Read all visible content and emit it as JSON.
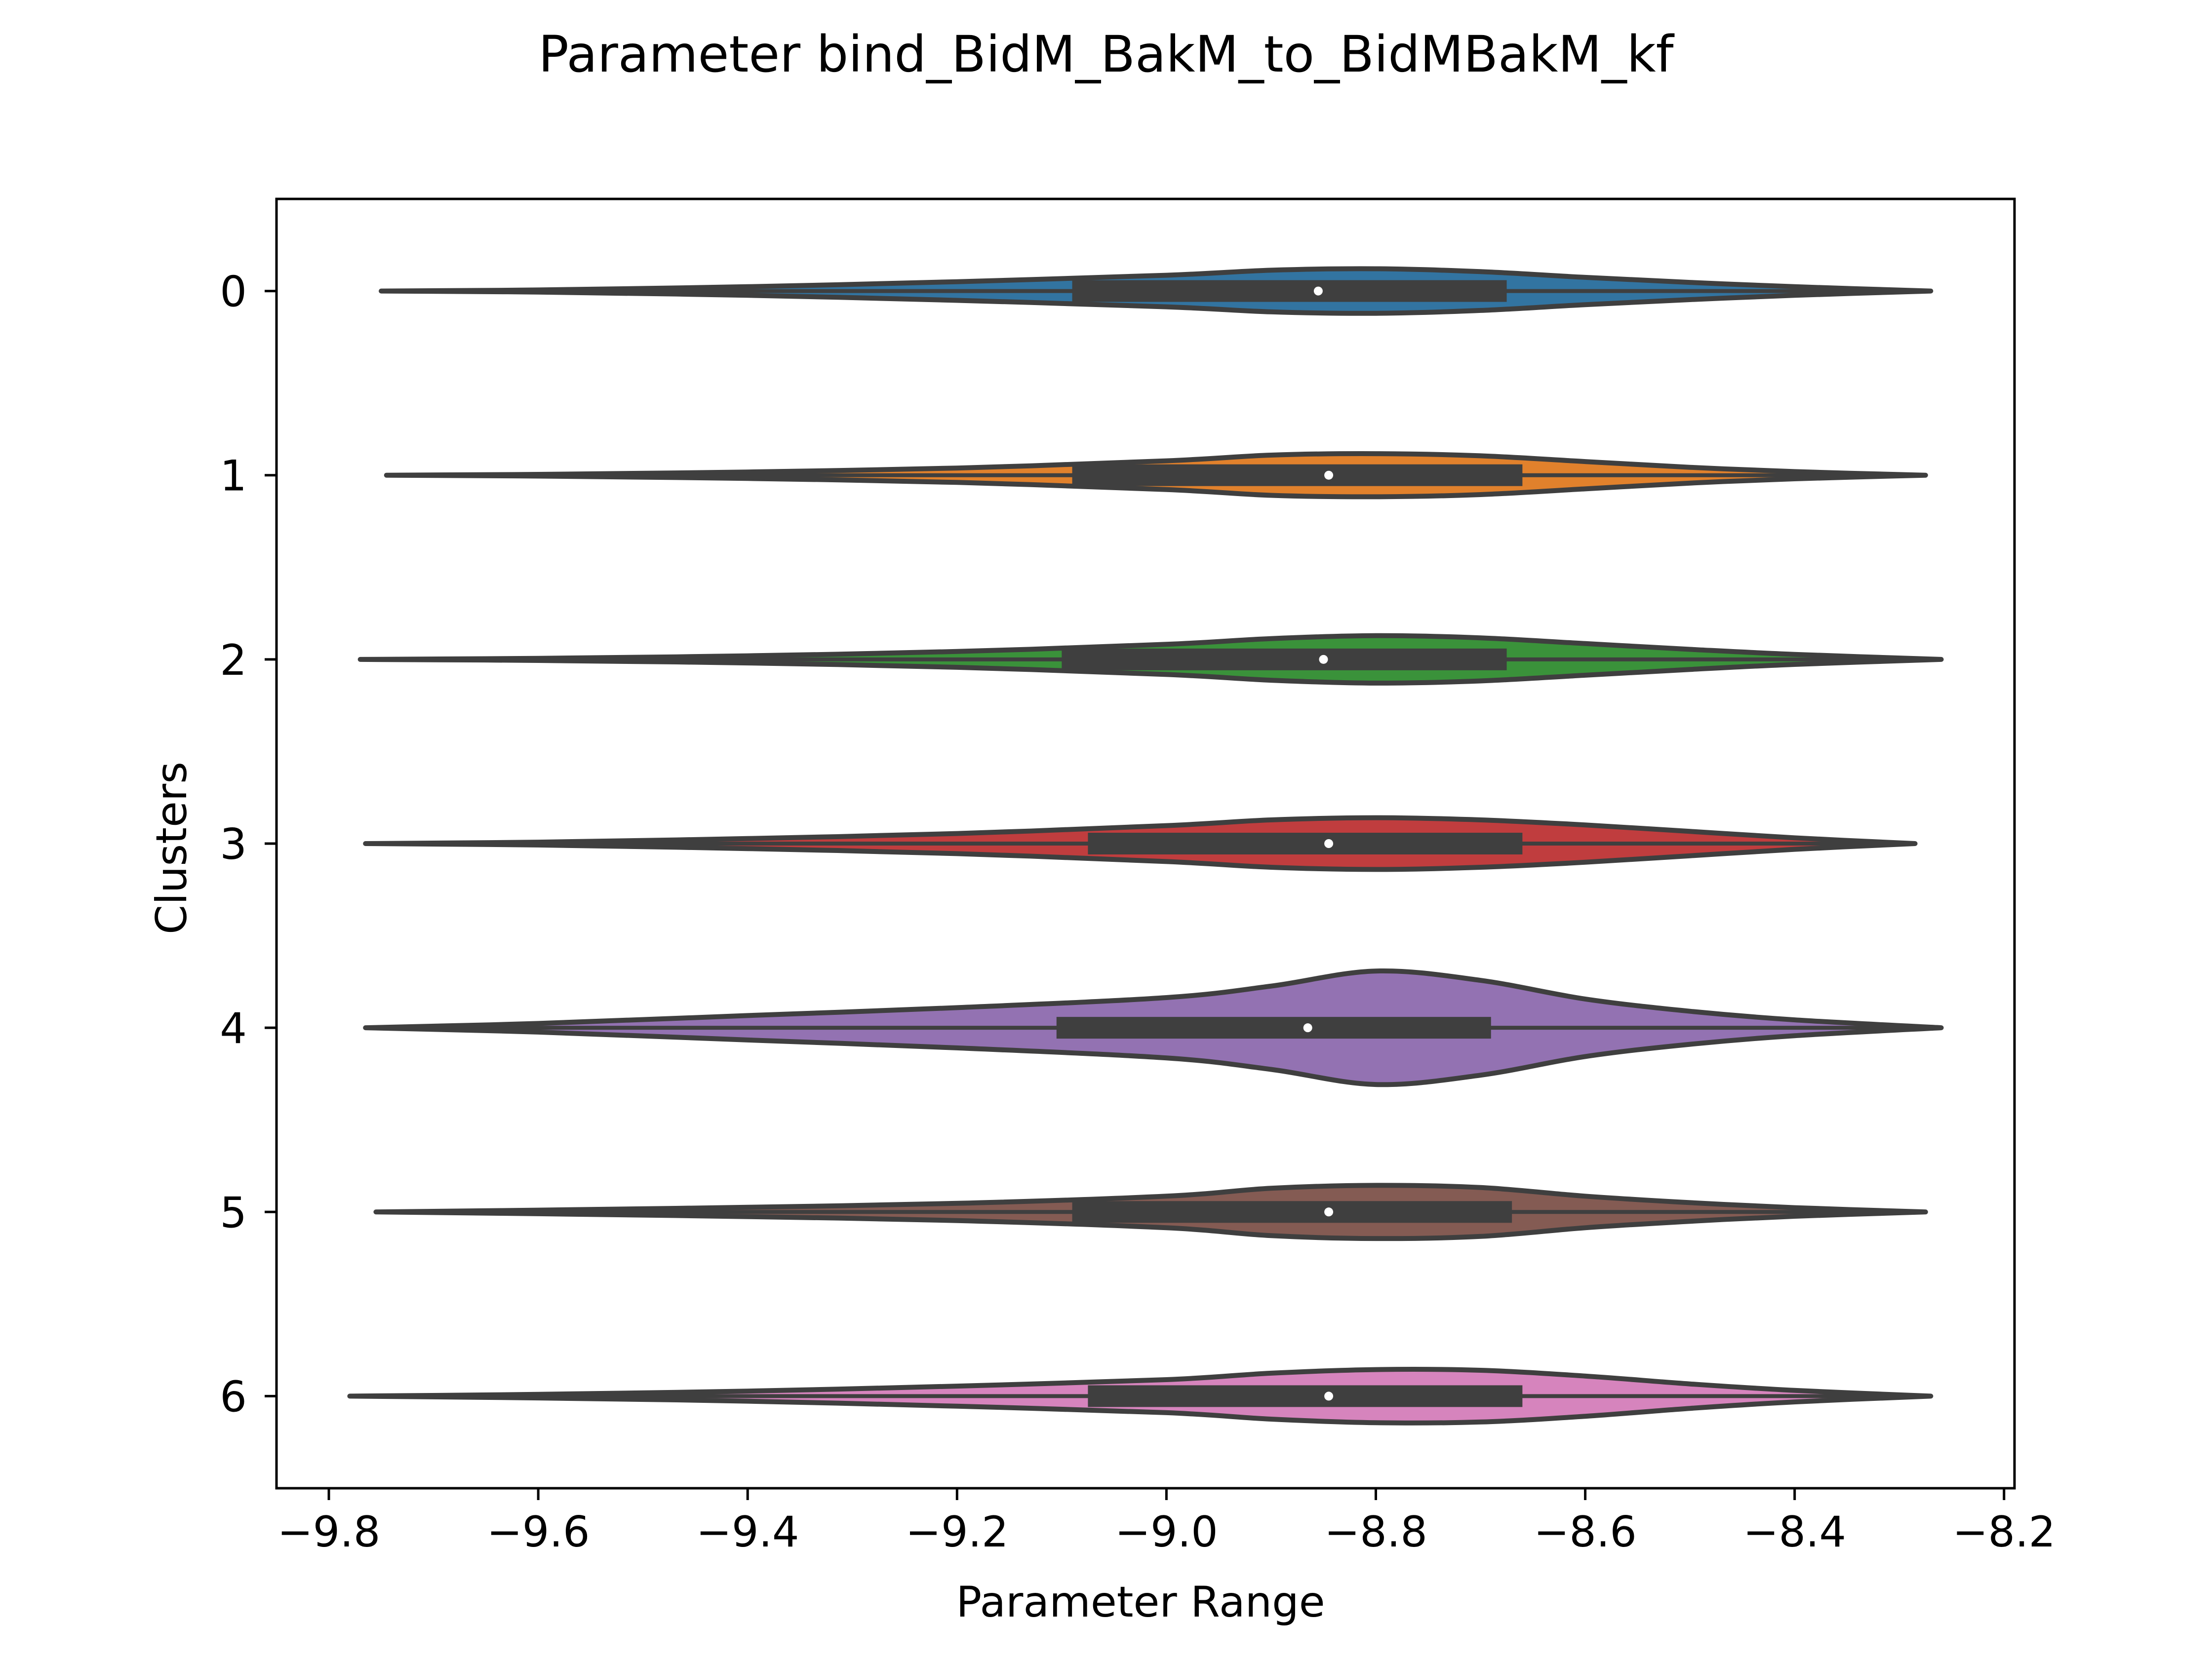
{
  "chart_data": {
    "type": "violin",
    "title": "Parameter bind_BidM_BakM_to_BidMBakM_kf",
    "xlabel": "Parameter Range",
    "ylabel": "Clusters",
    "xlim": [
      -9.85,
      -8.19
    ],
    "ylim": [
      -0.5,
      6.5
    ],
    "x_ticks": [
      -9.8,
      -9.6,
      -9.4,
      -9.2,
      -9.0,
      -8.8,
      -8.6,
      -8.4,
      -8.2
    ],
    "x_tick_labels": [
      "−9.8",
      "−9.6",
      "−9.4",
      "−9.2",
      "−9.0",
      "−8.8",
      "−8.6",
      "−8.4",
      "−8.2"
    ],
    "categories": [
      "0",
      "1",
      "2",
      "3",
      "4",
      "5",
      "6"
    ],
    "grid": false,
    "legend": "none",
    "outline_color": "#3f3f3f",
    "series": [
      {
        "cluster": "0",
        "color": "#3274a1",
        "min": -9.75,
        "max": -8.27,
        "q1": -9.09,
        "median": -8.855,
        "q3": -8.675,
        "density": [
          [
            -9.75,
            0.0
          ],
          [
            -9.6,
            0.015
          ],
          [
            -9.4,
            0.06
          ],
          [
            -9.2,
            0.13
          ],
          [
            -9.0,
            0.22
          ],
          [
            -8.9,
            0.29
          ],
          [
            -8.8,
            0.31
          ],
          [
            -8.7,
            0.27
          ],
          [
            -8.6,
            0.19
          ],
          [
            -8.5,
            0.12
          ],
          [
            -8.4,
            0.06
          ],
          [
            -8.27,
            0.0
          ]
        ]
      },
      {
        "cluster": "1",
        "color": "#e1812c",
        "min": -9.745,
        "max": -8.275,
        "q1": -9.09,
        "median": -8.845,
        "q3": -8.66,
        "density": [
          [
            -9.745,
            0.0
          ],
          [
            -9.6,
            0.012
          ],
          [
            -9.4,
            0.045
          ],
          [
            -9.2,
            0.1
          ],
          [
            -9.0,
            0.2
          ],
          [
            -8.9,
            0.28
          ],
          [
            -8.8,
            0.3
          ],
          [
            -8.7,
            0.27
          ],
          [
            -8.6,
            0.19
          ],
          [
            -8.5,
            0.11
          ],
          [
            -8.4,
            0.05
          ],
          [
            -8.275,
            0.0
          ]
        ]
      },
      {
        "cluster": "2",
        "color": "#3a923a",
        "min": -9.77,
        "max": -8.26,
        "q1": -9.1,
        "median": -8.85,
        "q3": -8.675,
        "density": [
          [
            -9.77,
            0.0
          ],
          [
            -9.6,
            0.015
          ],
          [
            -9.4,
            0.05
          ],
          [
            -9.2,
            0.11
          ],
          [
            -9.0,
            0.21
          ],
          [
            -8.9,
            0.29
          ],
          [
            -8.8,
            0.33
          ],
          [
            -8.7,
            0.3
          ],
          [
            -8.6,
            0.22
          ],
          [
            -8.5,
            0.14
          ],
          [
            -8.4,
            0.07
          ],
          [
            -8.26,
            0.0
          ]
        ]
      },
      {
        "cluster": "3",
        "color": "#c03d3e",
        "min": -9.765,
        "max": -8.285,
        "q1": -9.075,
        "median": -8.845,
        "q3": -8.66,
        "density": [
          [
            -9.765,
            0.0
          ],
          [
            -9.6,
            0.02
          ],
          [
            -9.4,
            0.07
          ],
          [
            -9.2,
            0.14
          ],
          [
            -9.0,
            0.25
          ],
          [
            -8.9,
            0.33
          ],
          [
            -8.8,
            0.36
          ],
          [
            -8.7,
            0.33
          ],
          [
            -8.6,
            0.26
          ],
          [
            -8.5,
            0.17
          ],
          [
            -8.4,
            0.08
          ],
          [
            -8.285,
            0.0
          ]
        ]
      },
      {
        "cluster": "4",
        "color": "#9372b2",
        "min": -9.765,
        "max": -8.26,
        "q1": -9.105,
        "median": -8.865,
        "q3": -8.69,
        "density": [
          [
            -9.765,
            0.0
          ],
          [
            -9.6,
            0.06
          ],
          [
            -9.4,
            0.17
          ],
          [
            -9.2,
            0.28
          ],
          [
            -9.0,
            0.42
          ],
          [
            -8.9,
            0.58
          ],
          [
            -8.8,
            0.79
          ],
          [
            -8.7,
            0.66
          ],
          [
            -8.6,
            0.4
          ],
          [
            -8.5,
            0.23
          ],
          [
            -8.4,
            0.11
          ],
          [
            -8.26,
            0.0
          ]
        ]
      },
      {
        "cluster": "5",
        "color": "#845b53",
        "min": -9.755,
        "max": -8.275,
        "q1": -9.09,
        "median": -8.845,
        "q3": -8.67,
        "density": [
          [
            -9.755,
            0.0
          ],
          [
            -9.6,
            0.025
          ],
          [
            -9.4,
            0.065
          ],
          [
            -9.2,
            0.12
          ],
          [
            -9.0,
            0.22
          ],
          [
            -8.9,
            0.33
          ],
          [
            -8.8,
            0.37
          ],
          [
            -8.7,
            0.34
          ],
          [
            -8.6,
            0.22
          ],
          [
            -8.5,
            0.13
          ],
          [
            -8.4,
            0.06
          ],
          [
            -8.275,
            0.0
          ]
        ]
      },
      {
        "cluster": "6",
        "color": "#d684bd",
        "min": -9.78,
        "max": -8.27,
        "q1": -9.075,
        "median": -8.845,
        "q3": -8.66,
        "density": [
          [
            -9.78,
            0.0
          ],
          [
            -9.6,
            0.025
          ],
          [
            -9.4,
            0.07
          ],
          [
            -9.2,
            0.14
          ],
          [
            -9.0,
            0.23
          ],
          [
            -8.9,
            0.32
          ],
          [
            -8.8,
            0.37
          ],
          [
            -8.7,
            0.36
          ],
          [
            -8.6,
            0.28
          ],
          [
            -8.5,
            0.17
          ],
          [
            -8.4,
            0.08
          ],
          [
            -8.27,
            0.0
          ]
        ]
      }
    ]
  }
}
